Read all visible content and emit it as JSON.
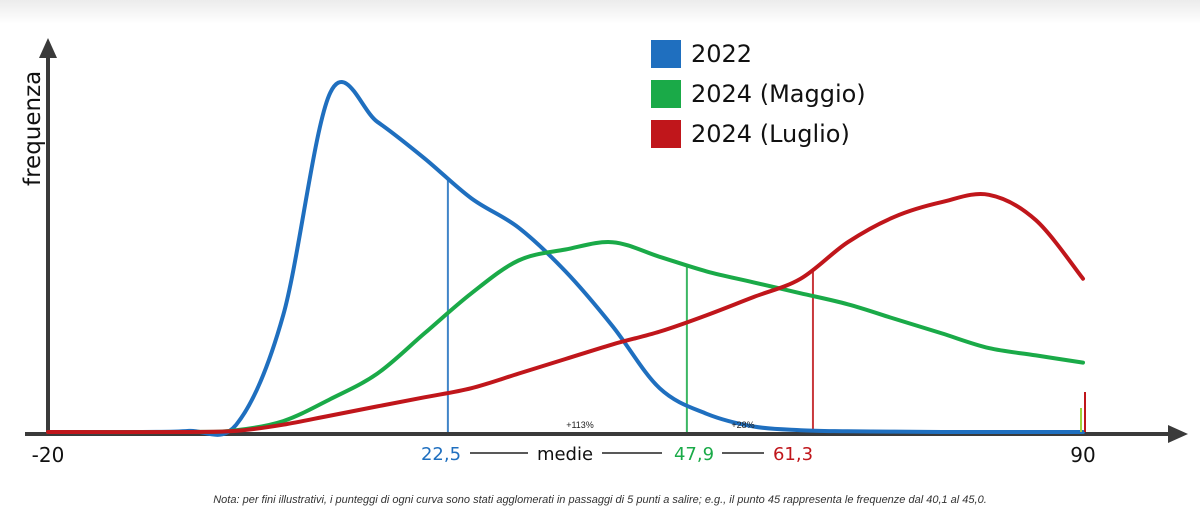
{
  "chart_data": {
    "type": "line",
    "title": "",
    "xlabel": "",
    "ylabel": "frequenza",
    "xlim": [
      -20,
      90
    ],
    "x_ticks": [
      "-20",
      "90"
    ],
    "colors": {
      "2022": "#1f6fbf",
      "2024 (Maggio)": "#1aaa48",
      "2024 (Luglio)": "#c0161b"
    },
    "series": [
      {
        "name": "2022",
        "color": "#1f6fbf",
        "x": [
          -20,
          -10,
          -5,
          0,
          5,
          10,
          15,
          20,
          25,
          30,
          35,
          40,
          45,
          50,
          55,
          60,
          65,
          70,
          75,
          80,
          85,
          90
        ],
        "y": [
          0,
          0,
          0.3,
          2,
          32,
          93,
          85,
          75,
          64,
          56,
          44,
          29,
          12,
          5,
          1.5,
          0.5,
          0.2,
          0.1,
          0,
          0,
          0,
          0
        ]
      },
      {
        "name": "2024 (Maggio)",
        "color": "#1aaa48",
        "x": [
          -20,
          -5,
          0,
          5,
          10,
          15,
          20,
          25,
          30,
          35,
          40,
          45,
          50,
          55,
          60,
          65,
          70,
          75,
          80,
          85,
          90
        ],
        "y": [
          0,
          0,
          0.5,
          3,
          9,
          16,
          27,
          38,
          47,
          50,
          52,
          48,
          44,
          41,
          38,
          35,
          31,
          27,
          23,
          21,
          19
        ]
      },
      {
        "name": "2024 (Luglio)",
        "color": "#c0161b",
        "x": [
          -20,
          -5,
          0,
          5,
          10,
          15,
          20,
          25,
          30,
          35,
          40,
          45,
          50,
          55,
          60,
          65,
          70,
          75,
          80,
          85,
          90
        ],
        "y": [
          0,
          0,
          0.3,
          2,
          4.5,
          7,
          9.5,
          12,
          16,
          20,
          24,
          27.5,
          32,
          37,
          42,
          52,
          59,
          63,
          65,
          58,
          42
        ]
      }
    ],
    "means": [
      {
        "series": "2022",
        "value": 22.5,
        "label": "22,5",
        "color": "#1f6fbf"
      },
      {
        "series": "2024 (Maggio)",
        "value": 47.9,
        "label": "47,9",
        "color": "#1aaa48"
      },
      {
        "series": "2024 (Luglio)",
        "value": 61.3,
        "label": "61,3",
        "color": "#c0161b"
      }
    ],
    "means_label": "medie",
    "annotations": [
      {
        "text": "+113%"
      },
      {
        "text": "+28%"
      }
    ]
  },
  "legend": [
    {
      "label": "2022",
      "color": "#1f6fbf"
    },
    {
      "label": "2024 (Maggio)",
      "color": "#1aaa48"
    },
    {
      "label": "2024 (Luglio)",
      "color": "#c0161b"
    }
  ],
  "note": "Nota: per fini illustrativi, i punteggi di ogni curva sono stati agglomerati in passaggi di 5 punti a salire; e.g., il punto 45 rappresenta le frequenze dal 40,1 al 45,0."
}
